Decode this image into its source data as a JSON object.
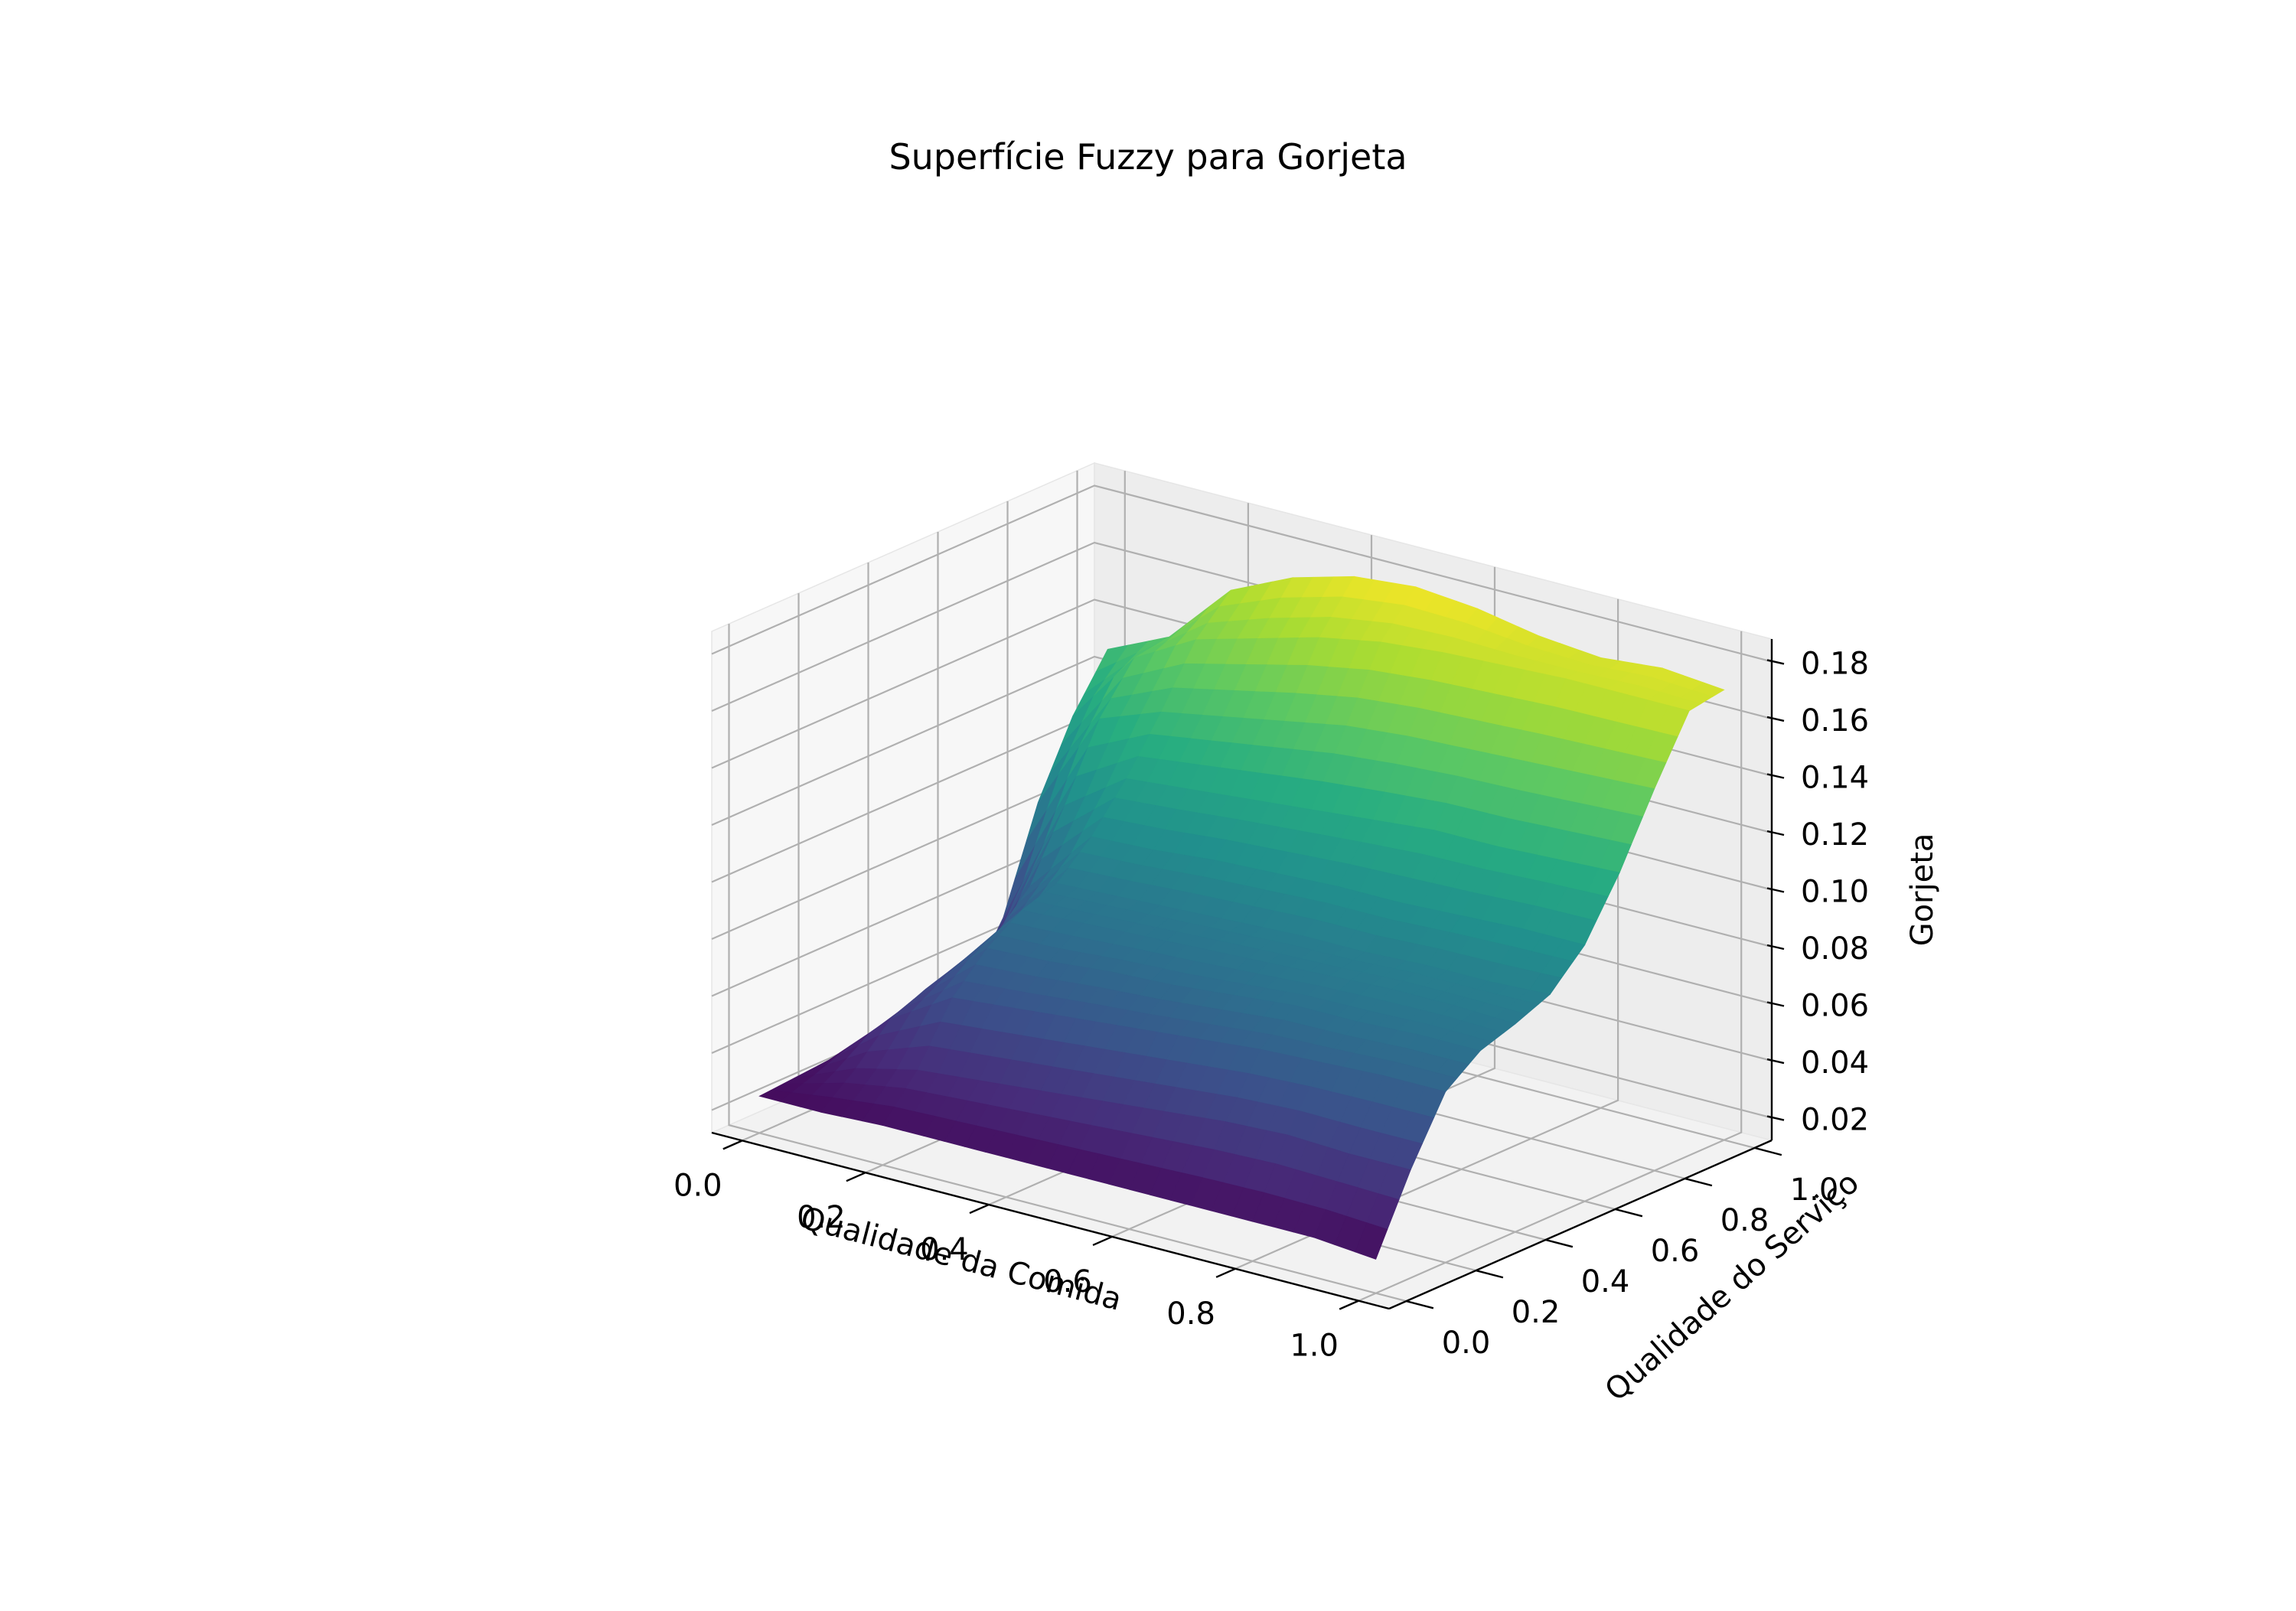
{
  "chart_data": {
    "type": "surface",
    "title": "Superfície Fuzzy para Gorjeta",
    "xlabel": "Qualidade da Comida",
    "ylabel": "Qualidade do Serviço",
    "zlabel": "Gorjeta",
    "colormap": "viridis",
    "xlim": [
      0,
      1
    ],
    "ylim": [
      0,
      1
    ],
    "zlim": [
      0.02,
      0.18
    ],
    "grid": true,
    "xticks": [
      "0.0",
      "0.2",
      "0.4",
      "0.6",
      "0.8",
      "1.0"
    ],
    "yticks": [
      "0.0",
      "0.2",
      "0.4",
      "0.6",
      "0.8",
      "1.0"
    ],
    "zticks": [
      "0.02",
      "0.04",
      "0.06",
      "0.08",
      "0.10",
      "0.12",
      "0.14",
      "0.16",
      "0.18"
    ],
    "x": [
      0.0,
      0.1,
      0.2,
      0.3,
      0.4,
      0.5,
      0.6,
      0.7,
      0.8,
      0.9,
      1.0
    ],
    "y": [
      0.0,
      0.1,
      0.2,
      0.3,
      0.4,
      0.5,
      0.6,
      0.7,
      0.8,
      0.9,
      1.0
    ],
    "z": [
      [
        0.025,
        0.025,
        0.026,
        0.026,
        0.026,
        0.026,
        0.026,
        0.026,
        0.026,
        0.026,
        0.024
      ],
      [
        0.026,
        0.035,
        0.04,
        0.042,
        0.044,
        0.046,
        0.048,
        0.05,
        0.051,
        0.05,
        0.05
      ],
      [
        0.027,
        0.047,
        0.06,
        0.062,
        0.064,
        0.066,
        0.068,
        0.07,
        0.071,
        0.072,
        0.072
      ],
      [
        0.027,
        0.052,
        0.072,
        0.073,
        0.075,
        0.076,
        0.078,
        0.08,
        0.08,
        0.081,
        0.081
      ],
      [
        0.027,
        0.056,
        0.08,
        0.081,
        0.082,
        0.083,
        0.084,
        0.085,
        0.086,
        0.086,
        0.085
      ],
      [
        0.027,
        0.06,
        0.084,
        0.085,
        0.086,
        0.087,
        0.088,
        0.088,
        0.089,
        0.089,
        0.09
      ],
      [
        0.03,
        0.072,
        0.095,
        0.096,
        0.098,
        0.099,
        0.1,
        0.1,
        0.101,
        0.102,
        0.102
      ],
      [
        0.05,
        0.095,
        0.11,
        0.112,
        0.114,
        0.116,
        0.118,
        0.12,
        0.12,
        0.121,
        0.122
      ],
      [
        0.085,
        0.12,
        0.128,
        0.132,
        0.136,
        0.14,
        0.142,
        0.143,
        0.144,
        0.145,
        0.146
      ],
      [
        0.11,
        0.136,
        0.148,
        0.154,
        0.16,
        0.164,
        0.166,
        0.167,
        0.168,
        0.168,
        0.168
      ],
      [
        0.128,
        0.138,
        0.16,
        0.17,
        0.176,
        0.178,
        0.176,
        0.172,
        0.17,
        0.172,
        0.17
      ]
    ]
  }
}
